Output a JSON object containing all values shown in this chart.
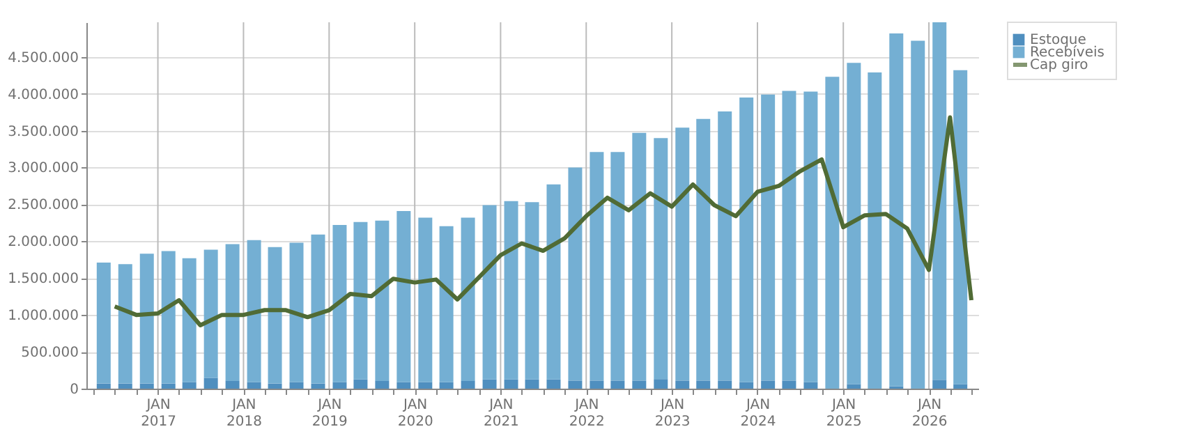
{
  "chart_data": {
    "type": "bar",
    "stacked": true,
    "x": [
      "2016-05-15",
      "2016-08-15",
      "2016-11-15",
      "2017-02-15",
      "2017-05-15",
      "2017-08-15",
      "2017-11-15",
      "2018-02-15",
      "2018-05-15",
      "2018-08-15",
      "2018-11-15",
      "2019-02-15",
      "2019-05-15",
      "2019-08-15",
      "2019-11-15",
      "2020-02-15",
      "2020-05-15",
      "2020-08-15",
      "2020-11-15",
      "2021-02-15",
      "2021-05-15",
      "2021-08-15",
      "2021-11-15",
      "2022-02-15",
      "2022-05-15",
      "2022-08-15",
      "2022-11-15",
      "2023-02-15",
      "2023-05-15",
      "2023-08-15",
      "2023-11-15",
      "2024-02-15",
      "2024-05-15",
      "2024-08-15",
      "2024-11-15",
      "2025-02-15",
      "2025-05-15",
      "2025-08-15",
      "2025-11-15",
      "2026-02-15",
      "2026-05-15"
    ],
    "series": [
      {
        "name": "Estoque",
        "color": "#4f8fbf",
        "values": [
          70000,
          70000,
          70000,
          70000,
          90000,
          145000,
          105000,
          90000,
          70000,
          90000,
          70000,
          90000,
          125000,
          105000,
          90000,
          90000,
          90000,
          105000,
          125000,
          125000,
          125000,
          125000,
          110000,
          110000,
          110000,
          110000,
          130000,
          110000,
          110000,
          110000,
          90000,
          110000,
          110000,
          90000,
          0,
          60000,
          0,
          30000,
          0,
          120000,
          60000
        ]
      },
      {
        "name": "Recebíveis",
        "color": "#74afd3",
        "values": [
          1640000,
          1620000,
          1760000,
          1795000,
          1680000,
          1740000,
          1855000,
          1925000,
          1850000,
          1890000,
          2020000,
          2130000,
          2135000,
          2175000,
          2320000,
          2230000,
          2115000,
          2215000,
          2365000,
          2420000,
          2405000,
          2645000,
          2890000,
          3100000,
          3100000,
          3360000,
          3270000,
          3430000,
          3550000,
          3650000,
          3860000,
          3880000,
          3930000,
          3940000,
          4230000,
          4360000,
          4290000,
          4790000,
          4720000,
          4850000,
          4260000
        ]
      },
      {
        "name": "Cap giro",
        "type": "line",
        "color": "#506b35",
        "x": [
          "2016-07-01",
          "2016-10-01",
          "2017-01-01",
          "2017-04-01",
          "2017-07-01",
          "2017-10-01",
          "2018-01-01",
          "2018-04-01",
          "2018-07-01",
          "2018-10-01",
          "2019-01-01",
          "2019-04-01",
          "2019-07-01",
          "2019-10-01",
          "2020-01-01",
          "2020-04-01",
          "2020-07-01",
          "2020-10-01",
          "2021-01-01",
          "2021-04-01",
          "2021-07-01",
          "2021-10-01",
          "2022-01-01",
          "2022-04-01",
          "2022-07-01",
          "2022-10-01",
          "2023-01-01",
          "2023-04-01",
          "2023-07-01",
          "2023-10-01",
          "2024-01-01",
          "2024-04-01",
          "2024-07-01",
          "2024-10-01",
          "2025-01-01",
          "2025-04-01",
          "2025-07-01",
          "2025-10-01",
          "2026-01-01",
          "2026-04-01",
          "2026-07-01"
        ],
        "values": [
          1115000,
          1000000,
          1020000,
          1200000,
          860000,
          1000000,
          1000000,
          1065000,
          1065000,
          970000,
          1065000,
          1285000,
          1255000,
          1490000,
          1440000,
          1480000,
          1210000,
          1510000,
          1810000,
          1970000,
          1870000,
          2040000,
          2340000,
          2590000,
          2420000,
          2650000,
          2470000,
          2770000,
          2490000,
          2340000,
          2670000,
          2750000,
          2950000,
          3110000,
          2190000,
          2350000,
          2370000,
          2170000,
          1610000,
          3680000,
          1200000
        ]
      }
    ],
    "xlim": [
      "2016-04-01",
      "2026-07-01"
    ],
    "xticks": [
      {
        "value": "2016-04-01",
        "label": null
      },
      {
        "value": "2016-07-01",
        "label": null
      },
      {
        "value": "2016-10-01",
        "label": null
      },
      {
        "value": "2017-01-01",
        "label": "JAN\n2017"
      },
      {
        "value": "2017-04-01",
        "label": null
      },
      {
        "value": "2017-07-01",
        "label": null
      },
      {
        "value": "2017-10-01",
        "label": null
      },
      {
        "value": "2018-01-01",
        "label": "JAN\n2018"
      },
      {
        "value": "2018-04-01",
        "label": null
      },
      {
        "value": "2018-07-01",
        "label": null
      },
      {
        "value": "2018-10-01",
        "label": null
      },
      {
        "value": "2019-01-01",
        "label": "JAN\n2019"
      },
      {
        "value": "2019-04-01",
        "label": null
      },
      {
        "value": "2019-07-01",
        "label": null
      },
      {
        "value": "2019-10-01",
        "label": null
      },
      {
        "value": "2020-01-01",
        "label": "JAN\n2020"
      },
      {
        "value": "2020-04-01",
        "label": null
      },
      {
        "value": "2020-07-01",
        "label": null
      },
      {
        "value": "2020-10-01",
        "label": null
      },
      {
        "value": "2021-01-01",
        "label": "JAN\n2021"
      },
      {
        "value": "2021-04-01",
        "label": null
      },
      {
        "value": "2021-07-01",
        "label": null
      },
      {
        "value": "2021-10-01",
        "label": null
      },
      {
        "value": "2022-01-01",
        "label": "JAN\n2022"
      },
      {
        "value": "2022-04-01",
        "label": null
      },
      {
        "value": "2022-07-01",
        "label": null
      },
      {
        "value": "2022-10-01",
        "label": null
      },
      {
        "value": "2023-01-01",
        "label": "JAN\n2023"
      },
      {
        "value": "2023-04-01",
        "label": null
      },
      {
        "value": "2023-07-01",
        "label": null
      },
      {
        "value": "2023-10-01",
        "label": null
      },
      {
        "value": "2024-01-01",
        "label": "JAN\n2024"
      },
      {
        "value": "2024-04-01",
        "label": null
      },
      {
        "value": "2024-07-01",
        "label": null
      },
      {
        "value": "2024-10-01",
        "label": null
      },
      {
        "value": "2025-01-01",
        "label": "JAN\n2025"
      },
      {
        "value": "2025-04-01",
        "label": null
      },
      {
        "value": "2025-07-01",
        "label": null
      },
      {
        "value": "2025-10-01",
        "label": null
      },
      {
        "value": "2026-01-01",
        "label": "JAN\n2026"
      },
      {
        "value": "2026-04-01",
        "label": null
      },
      {
        "value": "2026-07-01",
        "label": null
      }
    ],
    "ylim": [
      0,
      4970000
    ],
    "yticks": [
      0,
      {
        "value": 500000,
        "label": "500.000"
      },
      {
        "value": 1000000,
        "label": "1.000.000"
      },
      {
        "value": 1500000,
        "label": "1.500.000"
      },
      {
        "value": 2000000,
        "label": "2.000.000"
      },
      {
        "value": 2500000,
        "label": "2.500.000"
      },
      {
        "value": 3000000,
        "label": "3.000.000"
      },
      {
        "value": 3500000,
        "label": "3.500.000"
      },
      {
        "value": 4000000,
        "label": "4.000.000"
      },
      {
        "value": 4500000,
        "label": "4.500.000"
      }
    ],
    "grid": true,
    "legend": "top right",
    "line_style": "solid",
    "marker": "none"
  }
}
